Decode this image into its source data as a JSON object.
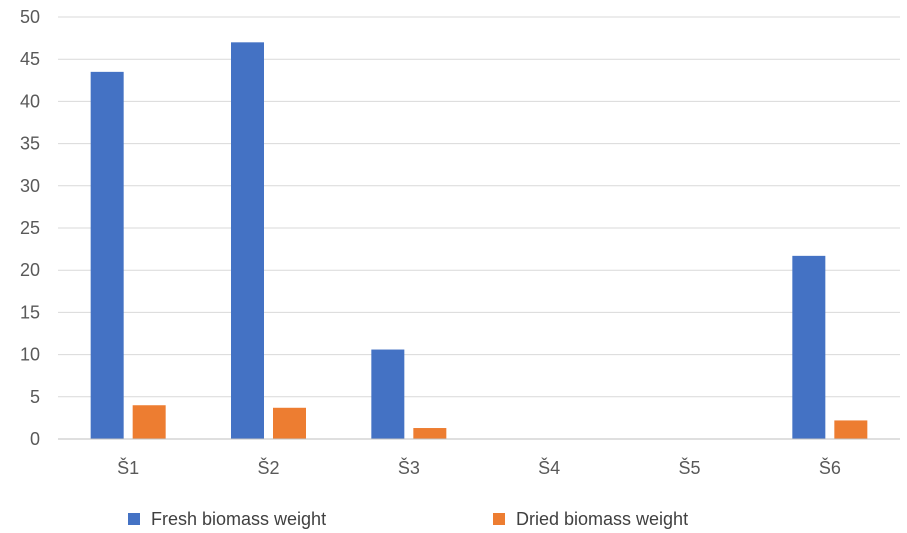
{
  "chart_data": {
    "type": "bar",
    "title": "",
    "xlabel": "",
    "ylabel": "",
    "categories": [
      "Š1",
      "Š2",
      "Š3",
      "Š4",
      "Š5",
      "Š6"
    ],
    "series": [
      {
        "name": "Fresh biomass weight",
        "color": "#4472C4",
        "values": [
          43.5,
          47.0,
          10.6,
          0,
          0,
          21.7
        ]
      },
      {
        "name": "Dried biomass weight",
        "color": "#ED7D31",
        "values": [
          4.0,
          3.7,
          1.3,
          0,
          0,
          2.2
        ]
      }
    ],
    "ylim": [
      0,
      50
    ],
    "yticks": [
      0,
      5,
      10,
      15,
      20,
      25,
      30,
      35,
      40,
      45,
      50
    ],
    "grid": true,
    "legend_position": "bottom"
  }
}
